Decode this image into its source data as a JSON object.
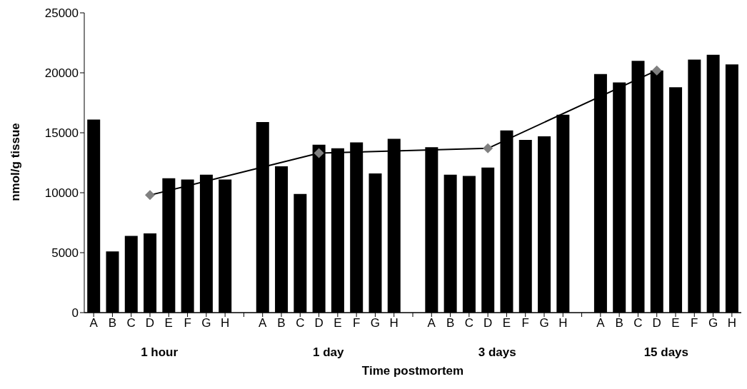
{
  "chart_data": {
    "type": "bar",
    "xlabel": "Time postmortem",
    "ylabel": "nmol/g tissue",
    "categories": [
      "A",
      "B",
      "C",
      "D",
      "E",
      "F",
      "G",
      "H",
      null,
      "A",
      "B",
      "C",
      "D",
      "E",
      "F",
      "G",
      "H",
      null,
      "A",
      "B",
      "C",
      "D",
      "E",
      "F",
      "G",
      "H",
      null,
      "A",
      "B",
      "C",
      "D",
      "E",
      "F",
      "G",
      "H"
    ],
    "series": [
      {
        "color": "#000000",
        "values": [
          16100,
          5100,
          6400,
          6600,
          11200,
          11100,
          11500,
          11100,
          null,
          15900,
          12200,
          9900,
          14000,
          13700,
          14200,
          11600,
          14500,
          null,
          13800,
          11500,
          11400,
          12100,
          15200,
          14400,
          14700,
          16500,
          null,
          19900,
          19200,
          21000,
          20200,
          18800,
          21100,
          21500,
          20700
        ]
      },
      {
        "type": "line",
        "color": "#000000",
        "marker": "diamond",
        "values": [
          null,
          null,
          null,
          9800,
          null,
          null,
          null,
          null,
          null,
          null,
          null,
          null,
          13300,
          null,
          null,
          null,
          null,
          null,
          null,
          null,
          null,
          13700,
          null,
          null,
          null,
          null,
          null,
          null,
          null,
          null,
          20200,
          null,
          null,
          null,
          null
        ]
      }
    ],
    "annotations": [
      "1 hour",
      "1 day",
      "3 days",
      "15 days"
    ],
    "ylim": [
      0,
      25000
    ],
    "yticks": [
      0,
      5000,
      10000,
      15000,
      20000,
      25000
    ],
    "grid": false,
    "legend": false
  }
}
